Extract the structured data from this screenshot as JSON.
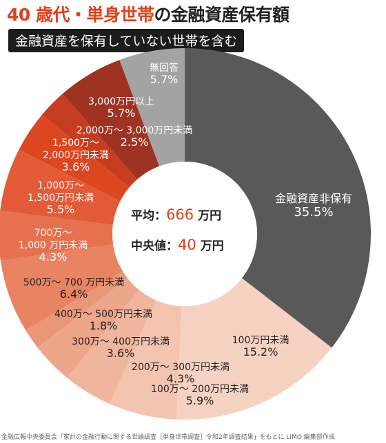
{
  "header": {
    "title_accent": "40 歳代・単身世帯",
    "title_rest": "の金融資産保有額",
    "subtitle": "金融資産を保有していない世帯を含む"
  },
  "stats": {
    "mean_label": "平均：",
    "mean_value": "666",
    "median_label": "中央値：",
    "median_value": "40",
    "unit": "万円"
  },
  "source": "金融広報中央委員会「家計の金融行動に関する世論調査［単身世帯調査］令和2年調査結果」をもとに LIMO 編集部作成",
  "colors": {
    "accent": "#e0401a",
    "dark_text": "#222222"
  },
  "chart_data": {
    "type": "pie",
    "hole": true,
    "slices": [
      {
        "label": "金融資産非保有",
        "value": 35.5,
        "display": "35.5%",
        "color": "#595959"
      },
      {
        "label": "100万円未満",
        "value": 15.2,
        "display": "15.2%",
        "color": "#f6d2c3"
      },
      {
        "label": "100万～ 200万円未満",
        "value": 5.9,
        "display": "5.9%",
        "color": "#f3c4b0"
      },
      {
        "label": "200万～ 300万円未満",
        "value": 4.3,
        "display": "4.3%",
        "color": "#f0b59d"
      },
      {
        "label": "300万～ 400万円未満",
        "value": 3.6,
        "display": "3.6%",
        "color": "#eda68a"
      },
      {
        "label": "400万～ 500万円未満",
        "value": 1.8,
        "display": "1.8%",
        "color": "#ea9777"
      },
      {
        "label": "500万～ 700 万円未満",
        "value": 6.4,
        "display": "6.4%",
        "color": "#e88462"
      },
      {
        "label": "700万～ 1,000 万円未満",
        "value": 4.3,
        "display": "4.3%",
        "color": "#e5714f"
      },
      {
        "label": "1,000万～ 1,500万円未満",
        "value": 5.5,
        "display": "5.5%",
        "color": "#e25a36"
      },
      {
        "label": "1,500万～ 2,000万円未満",
        "value": 3.6,
        "display": "3.6%",
        "color": "#dc4620"
      },
      {
        "label": "2,000万～ 3,000万円未満",
        "value": 2.5,
        "display": "2.5%",
        "color": "#c63d1f"
      },
      {
        "label": "3,000万円以上",
        "value": 5.7,
        "display": "5.7%",
        "color": "#9e3322"
      },
      {
        "label": "無回答",
        "value": 5.7,
        "display": "5.7%",
        "color": "#a3a3a3"
      }
    ]
  }
}
